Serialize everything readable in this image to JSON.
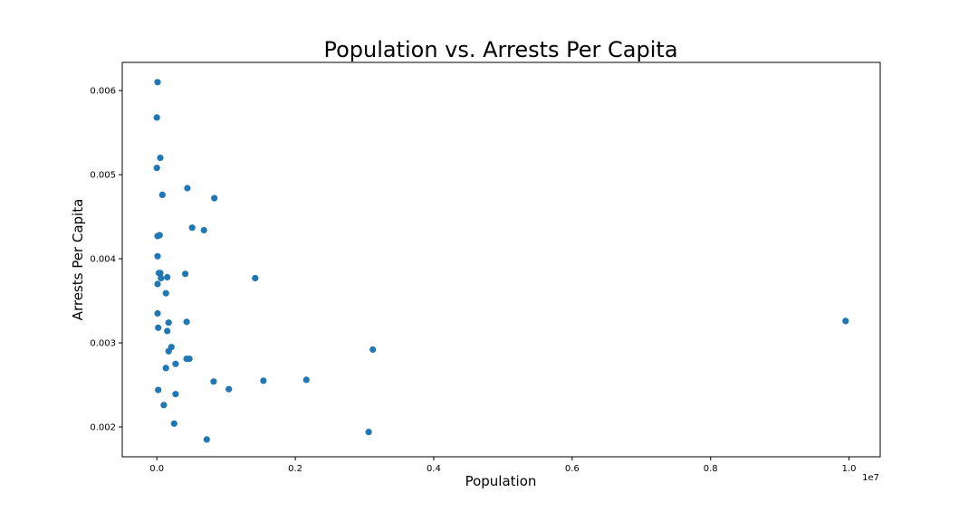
{
  "chart_data": {
    "type": "scatter",
    "title": "Population vs. Arrests Per Capita",
    "xlabel": "Population",
    "ylabel": "Arrests Per Capita",
    "x_offset_text": "1e7",
    "xlim": [
      -0.05,
      1.045
    ],
    "ylim": [
      0.001645,
      0.006335
    ],
    "xticks": [
      0.0,
      0.2,
      0.4,
      0.6,
      0.8,
      1.0
    ],
    "xtick_labels": [
      "0.0",
      "0.2",
      "0.4",
      "0.6",
      "0.8",
      "1.0"
    ],
    "yticks": [
      0.002,
      0.003,
      0.004,
      0.005,
      0.006
    ],
    "ytick_labels": [
      "0.002",
      "0.003",
      "0.004",
      "0.005",
      "0.006"
    ],
    "marker_color": "#1f77b4",
    "grid": false,
    "series": [
      {
        "points": [
          [
            0.001,
            0.0061
          ],
          [
            0.0,
            0.00568
          ],
          [
            0.005,
            0.0052
          ],
          [
            0.0,
            0.00508
          ],
          [
            0.008,
            0.00476
          ],
          [
            0.044,
            0.00484
          ],
          [
            0.083,
            0.00472
          ],
          [
            0.051,
            0.00437
          ],
          [
            0.068,
            0.00434
          ],
          [
            0.001,
            0.00427
          ],
          [
            0.004,
            0.00428
          ],
          [
            0.001,
            0.00403
          ],
          [
            0.003,
            0.00383
          ],
          [
            0.005,
            0.00383
          ],
          [
            0.041,
            0.00382
          ],
          [
            0.006,
            0.00377
          ],
          [
            0.015,
            0.00378
          ],
          [
            0.142,
            0.00377
          ],
          [
            0.001,
            0.0037
          ],
          [
            0.013,
            0.00359
          ],
          [
            0.001,
            0.00335
          ],
          [
            0.043,
            0.00325
          ],
          [
            0.017,
            0.00324
          ],
          [
            0.002,
            0.00318
          ],
          [
            0.015,
            0.00314
          ],
          [
            0.995,
            0.00326
          ],
          [
            0.312,
            0.00292
          ],
          [
            0.021,
            0.00295
          ],
          [
            0.017,
            0.0029
          ],
          [
            0.043,
            0.00281
          ],
          [
            0.047,
            0.00281
          ],
          [
            0.027,
            0.00275
          ],
          [
            0.013,
            0.0027
          ],
          [
            0.082,
            0.00254
          ],
          [
            0.154,
            0.00255
          ],
          [
            0.216,
            0.00256
          ],
          [
            0.104,
            0.00245
          ],
          [
            0.002,
            0.00244
          ],
          [
            0.027,
            0.00239
          ],
          [
            0.01,
            0.00226
          ],
          [
            0.025,
            0.00204
          ],
          [
            0.306,
            0.00194
          ],
          [
            0.072,
            0.00185
          ]
        ]
      }
    ]
  }
}
